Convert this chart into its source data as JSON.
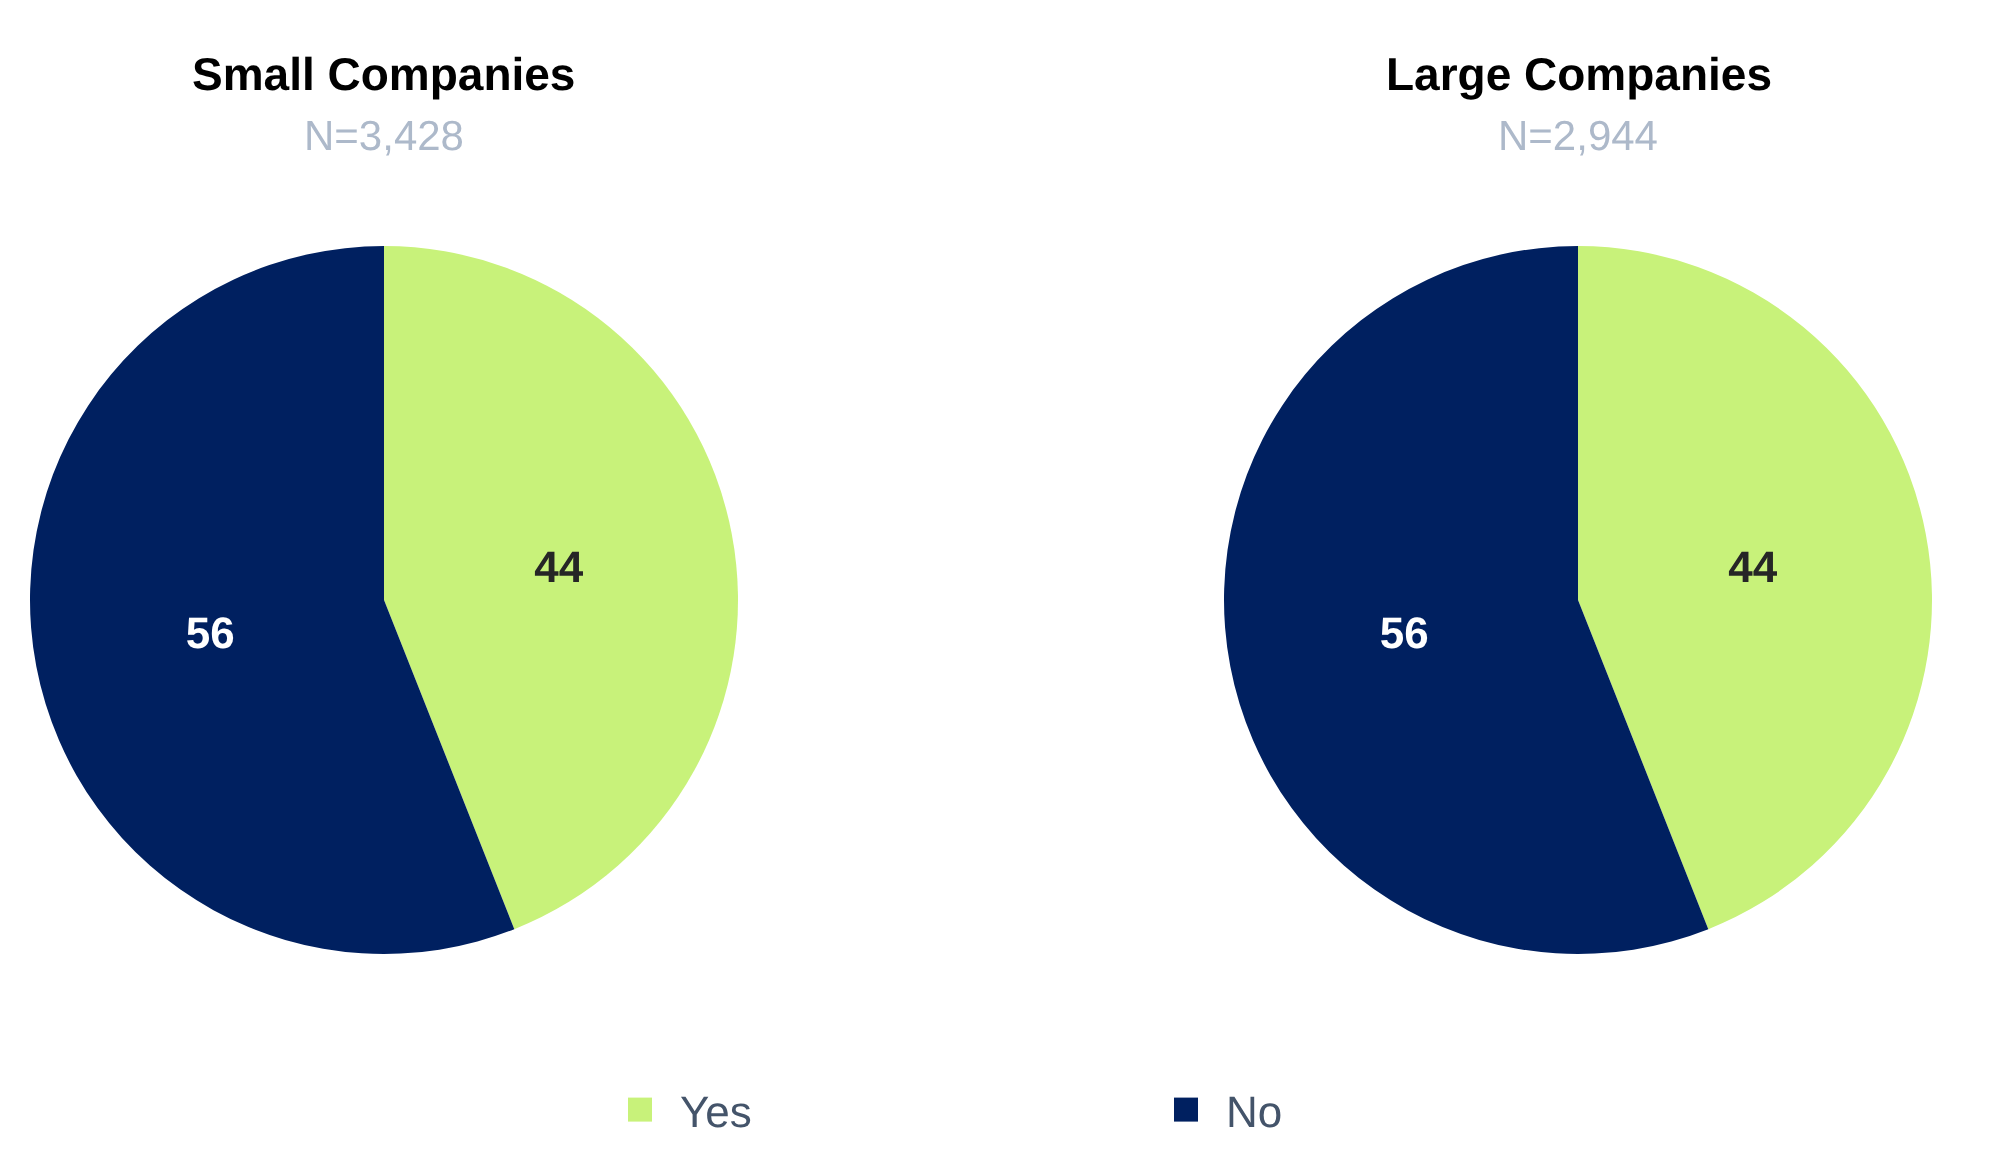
{
  "chart_data": [
    {
      "type": "pie",
      "title": "Small Companies",
      "subtitle": "N=3,428",
      "categories": [
        "Yes",
        "No"
      ],
      "values": [
        44,
        56
      ],
      "colors": [
        "#c8f27a",
        "#002060"
      ],
      "data_labels": true,
      "legend": "bottom"
    },
    {
      "type": "pie",
      "title": "Large Companies",
      "subtitle": "N=2,944",
      "categories": [
        null,
        null
      ],
      "values": [
        44,
        56
      ],
      "colors": [
        "#c8f27a",
        "#002060"
      ],
      "data_labels": true
    }
  ]
}
